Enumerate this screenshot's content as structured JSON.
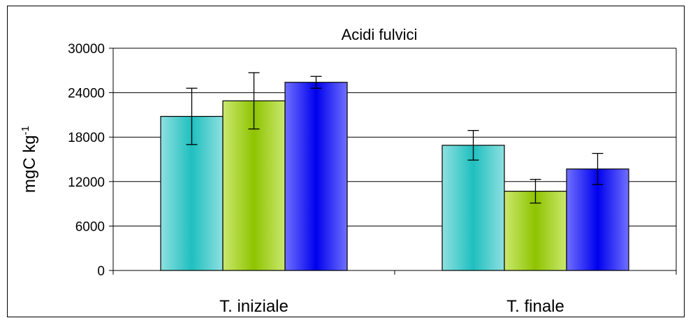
{
  "chart_data": {
    "type": "bar",
    "title": "Acidi fulvici",
    "ylabel": "mgC kg",
    "ylabel_superscript": "-1",
    "xlabel": "",
    "ylim": [
      0,
      30000
    ],
    "yticks": [
      0,
      6000,
      12000,
      18000,
      24000,
      30000
    ],
    "ytick_labels": [
      "0",
      "6000",
      "12000",
      "18000",
      "24000",
      "30000"
    ],
    "grid": true,
    "legend": "none",
    "categories": [
      "T. iniziale",
      "T. finale"
    ],
    "series": [
      {
        "values": [
          20800,
          16900
        ],
        "errors": [
          3800,
          2000
        ],
        "colors": [
          "#1fbfbf",
          "#8fe0e0"
        ]
      },
      {
        "values": [
          22900,
          10700
        ],
        "errors": [
          3800,
          1600
        ],
        "colors": [
          "#8ec400",
          "#cbe86e"
        ]
      },
      {
        "values": [
          25400,
          13700
        ],
        "errors": [
          800,
          2100
        ],
        "colors": [
          "#0000ee",
          "#7070ff"
        ]
      }
    ]
  }
}
